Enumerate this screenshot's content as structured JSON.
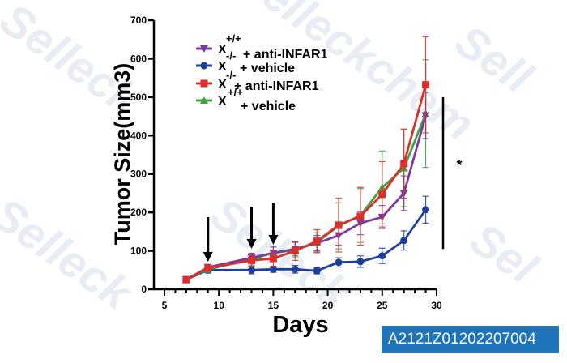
{
  "chart_data": {
    "type": "line",
    "title": "",
    "xlabel": "Days",
    "ylabel": "Tumor Size(mm3)",
    "xlim": [
      5,
      30
    ],
    "ylim": [
      0,
      700
    ],
    "x_ticks": [
      5,
      10,
      15,
      20,
      25,
      30
    ],
    "y_ticks": [
      0,
      100,
      200,
      300,
      400,
      500,
      600,
      700
    ],
    "grid": false,
    "legend_position": "upper-left-inside",
    "x": [
      7,
      9,
      13,
      15,
      17,
      19,
      21,
      23,
      25,
      27,
      29
    ],
    "series": [
      {
        "name": "X+/+ + anti-INFAR1",
        "genotype": "+/+",
        "treatment": "+ anti-INFAR1",
        "color": "#7b3a9e",
        "marker": "triangle-down",
        "values": [
          25,
          57,
          82,
          95,
          105,
          120,
          140,
          172,
          188,
          250,
          452
        ],
        "errors": [
          5,
          8,
          12,
          15,
          18,
          20,
          25,
          30,
          30,
          45,
          60
        ]
      },
      {
        "name": "X-/- + vehicle",
        "genotype": "-/-",
        "treatment": "+ vehicle",
        "color": "#1f3f99",
        "marker": "circle",
        "values": [
          25,
          50,
          50,
          52,
          52,
          48,
          70,
          72,
          87,
          127,
          207
        ],
        "errors": [
          5,
          8,
          10,
          8,
          10,
          8,
          12,
          15,
          20,
          25,
          35
        ]
      },
      {
        "name": "X-/- + anti-INFAR1",
        "genotype": "-/-",
        "treatment": "+ anti-INFAR1",
        "color": "#d9302b",
        "marker": "square",
        "values": [
          25,
          55,
          75,
          80,
          100,
          125,
          167,
          190,
          247,
          327,
          532
        ],
        "errors": [
          5,
          8,
          15,
          20,
          25,
          30,
          70,
          75,
          85,
          90,
          125
        ]
      },
      {
        "name": "X+/+ + vehicle",
        "genotype": "+/+",
        "treatment": "+ vehicle",
        "color": "#3fa33f",
        "marker": "triangle-up",
        "values": [
          25,
          52,
          78,
          95,
          102,
          122,
          165,
          192,
          265,
          315,
          457
        ],
        "errors": [
          5,
          8,
          15,
          15,
          20,
          25,
          60,
          70,
          95,
          100,
          140
        ]
      }
    ],
    "annotations": {
      "arrows_at_days": [
        9,
        13,
        15
      ],
      "significance_bar": {
        "from": 205,
        "to": 460,
        "label": "*"
      }
    }
  },
  "legend": {
    "items": [
      {
        "prefix": "X",
        "sup": "+/+",
        "label": "+ anti-INFAR1"
      },
      {
        "prefix": "X",
        "sup": "-/-",
        "label": "+ vehicle"
      },
      {
        "prefix": "X",
        "sup": "-/-",
        "label": "+ anti-INFAR1"
      },
      {
        "prefix": "X",
        "sup": "+/+",
        "label": "+ vehicle"
      }
    ]
  },
  "watermark": "Selleckchem",
  "badge": {
    "id": "A2121Z01202207004",
    "color": "#1e73b9"
  }
}
